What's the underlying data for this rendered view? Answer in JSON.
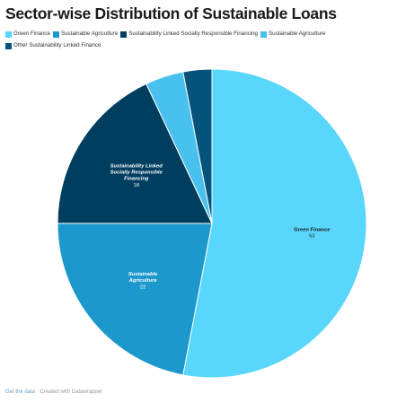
{
  "chart_data": {
    "type": "pie",
    "title": "Sector-wise Distribution of Sustainable Loans",
    "categories": [
      "Green Finance",
      "Sustainable Agriculture",
      "Sustainability Linked Socially Responsible Financing",
      "Sustainable Agriculture",
      "Other Sustainability Linked Finance"
    ],
    "values": [
      53,
      22,
      18,
      4,
      3
    ],
    "value_labels": [
      "53",
      "22",
      "18",
      "",
      ""
    ],
    "slice_labels": [
      [
        "Green Finance"
      ],
      [
        "Sustainable",
        "Agriculture"
      ],
      [
        "Sustainability Linked",
        "Socially Responsible",
        "Financing"
      ],
      [],
      []
    ],
    "colors": [
      "#58d6fb",
      "#1d98cc",
      "#003e5f",
      "#49c1ee",
      "#05537a"
    ],
    "legend_placement": "top"
  },
  "legend": [
    {
      "label": "Green Finance",
      "color": "#58d6fb"
    },
    {
      "label": "Sustainable Agriculture",
      "color": "#1d98cc"
    },
    {
      "label": "Sustainability Linked Socially Responsible Financing",
      "color": "#003e5f"
    },
    {
      "label": "Sustainable Agriculture",
      "color": "#49c1ee"
    },
    {
      "label": "Other Sustainability Linked Finance",
      "color": "#05537a"
    }
  ],
  "footer": {
    "get_data": "Get the data",
    "separator": "·",
    "credit": "Created with Datawrapper"
  }
}
